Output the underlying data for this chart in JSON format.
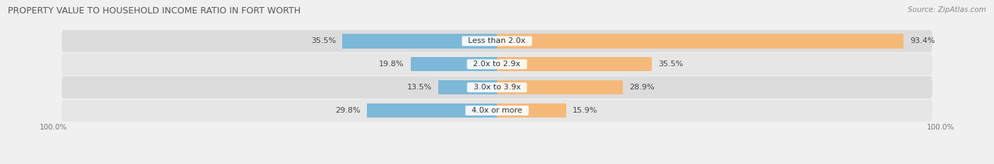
{
  "title": "PROPERTY VALUE TO HOUSEHOLD INCOME RATIO IN FORT WORTH",
  "source": "Source: ZipAtlas.com",
  "categories": [
    "Less than 2.0x",
    "2.0x to 2.9x",
    "3.0x to 3.9x",
    "4.0x or more"
  ],
  "without_mortgage": [
    35.5,
    19.8,
    13.5,
    29.8
  ],
  "with_mortgage": [
    93.4,
    35.5,
    28.9,
    15.9
  ],
  "color_blue": "#7db8d8",
  "color_orange": "#f5b97a",
  "bar_height": 0.62,
  "title_fontsize": 9,
  "label_fontsize": 8,
  "axis_label_fontsize": 7.5,
  "legend_fontsize": 8,
  "source_fontsize": 7.5,
  "xlim": 100,
  "row_colors": [
    "#e8e8e8",
    "#eeeeee",
    "#e8e8e8",
    "#eeeeee"
  ]
}
